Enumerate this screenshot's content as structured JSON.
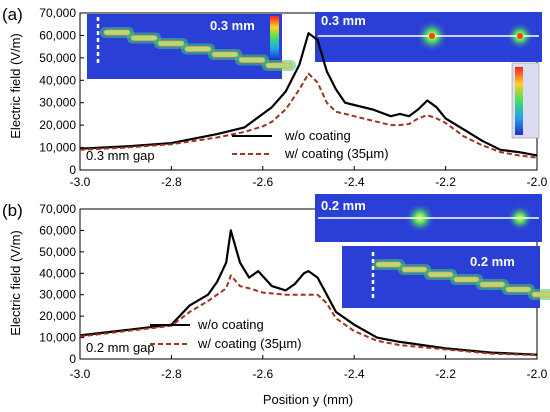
{
  "figure": {
    "xlabel": "Position y (mm)",
    "xticks": [
      "-3.0",
      "-2.8",
      "-2.6",
      "-2.4",
      "-2.2",
      "-2.0"
    ]
  },
  "legend": {
    "solid": "w/o coating",
    "dashed": "w/ coating (35µm)"
  },
  "colors": {
    "solid": "#000000",
    "dashed": "#a0321e",
    "field_bg": "#2a3fd6",
    "hot": "#40e070"
  },
  "chart_data": [
    {
      "type": "line",
      "panel_label": "(a)",
      "gap_label": "0.3 mm gap",
      "ylabel": "Electric field (V/m)",
      "xlim": [
        -3.0,
        -2.0
      ],
      "ylim": [
        0,
        70000
      ],
      "yticks": [
        "0",
        "10,000",
        "20,000",
        "30,000",
        "40,000",
        "50,000",
        "60,000",
        "70,000"
      ],
      "series": [
        {
          "name": "w/o coating",
          "style": "solid",
          "x": [
            -3.0,
            -2.9,
            -2.8,
            -2.7,
            -2.64,
            -2.6,
            -2.58,
            -2.55,
            -2.52,
            -2.5,
            -2.48,
            -2.46,
            -2.44,
            -2.42,
            -2.4,
            -2.36,
            -2.32,
            -2.3,
            -2.28,
            -2.26,
            -2.24,
            -2.22,
            -2.2,
            -2.16,
            -2.12,
            -2.08,
            -2.04,
            -2.0
          ],
          "y": [
            9500,
            10500,
            12000,
            16000,
            19000,
            25000,
            28000,
            35000,
            47000,
            61000,
            58000,
            44000,
            36000,
            30000,
            29000,
            27000,
            24000,
            25000,
            24000,
            27000,
            31000,
            28000,
            23000,
            18000,
            13000,
            9000,
            8000,
            6500
          ]
        },
        {
          "name": "w/ coating (35µm)",
          "style": "dashed",
          "x": [
            -3.0,
            -2.9,
            -2.8,
            -2.7,
            -2.64,
            -2.6,
            -2.58,
            -2.55,
            -2.52,
            -2.5,
            -2.48,
            -2.46,
            -2.44,
            -2.42,
            -2.4,
            -2.36,
            -2.32,
            -2.3,
            -2.28,
            -2.26,
            -2.24,
            -2.22,
            -2.2,
            -2.16,
            -2.12,
            -2.08,
            -2.04,
            -2.0
          ],
          "y": [
            9000,
            10000,
            11500,
            14500,
            17000,
            19500,
            21500,
            27000,
            36000,
            43000,
            39000,
            30000,
            26000,
            25000,
            24000,
            22000,
            20000,
            20000,
            20500,
            23000,
            24500,
            23000,
            21000,
            15000,
            11000,
            8000,
            6500,
            5500
          ]
        }
      ],
      "insets": [
        {
          "label": "0.3 mm",
          "view": "side"
        },
        {
          "label": "0.3 mm",
          "view": "top"
        }
      ]
    },
    {
      "type": "line",
      "panel_label": "(b)",
      "gap_label": "0.2 mm gap",
      "ylabel": "Electric field (V/m)",
      "xlim": [
        -3.0,
        -2.0
      ],
      "ylim": [
        0,
        70000
      ],
      "yticks": [
        "0",
        "10,000",
        "20,000",
        "30,000",
        "40,000",
        "50,000",
        "60,000",
        "70,000"
      ],
      "series": [
        {
          "name": "w/o coating",
          "style": "solid",
          "x": [
            -3.0,
            -2.9,
            -2.8,
            -2.76,
            -2.72,
            -2.7,
            -2.68,
            -2.67,
            -2.65,
            -2.63,
            -2.61,
            -2.58,
            -2.55,
            -2.53,
            -2.51,
            -2.5,
            -2.48,
            -2.46,
            -2.44,
            -2.4,
            -2.35,
            -2.3,
            -2.2,
            -2.1,
            -2.0
          ],
          "y": [
            11000,
            13500,
            16000,
            25000,
            30000,
            36000,
            45000,
            60000,
            45000,
            38000,
            41000,
            34000,
            32000,
            35000,
            40000,
            41000,
            38000,
            30000,
            22000,
            16000,
            10000,
            8000,
            5000,
            3000,
            2000
          ]
        },
        {
          "name": "w/ coating (35µm)",
          "style": "dashed",
          "x": [
            -3.0,
            -2.9,
            -2.8,
            -2.76,
            -2.72,
            -2.7,
            -2.68,
            -2.67,
            -2.65,
            -2.63,
            -2.6,
            -2.55,
            -2.5,
            -2.48,
            -2.46,
            -2.44,
            -2.4,
            -2.35,
            -2.3,
            -2.2,
            -2.1,
            -2.0
          ],
          "y": [
            10500,
            13000,
            15500,
            22000,
            27000,
            30000,
            33000,
            39000,
            34000,
            33000,
            31000,
            30000,
            30000,
            30000,
            26000,
            19000,
            13000,
            8500,
            6500,
            4500,
            2500,
            1800
          ]
        }
      ],
      "insets": [
        {
          "label": "0.2 mm",
          "view": "top"
        },
        {
          "label": "0.2 mm",
          "view": "side"
        }
      ]
    }
  ]
}
